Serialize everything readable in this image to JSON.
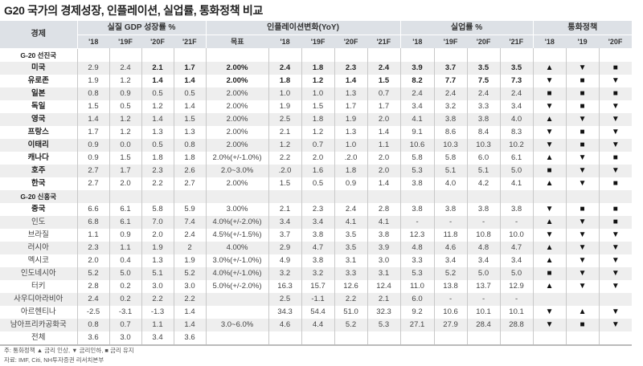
{
  "title": "G20 국가의 경제성장, 인플레이션, 실업률, 통화정책 비교",
  "header": {
    "economy": "경제",
    "gdp": "실질 GDP 성장률 %",
    "inflation": "인플레이션변화(YoY)",
    "unemployment": "실업률 %",
    "policy": "통화정책",
    "target": "목표",
    "years4": [
      "'18",
      "'19F",
      "'20F",
      "'21F"
    ],
    "policy_years": [
      "'18",
      "'19",
      "'20F"
    ]
  },
  "policy_symbols": {
    "up": "▲",
    "down": "▼",
    "hold": "■",
    "none": ""
  },
  "rows": [
    {
      "group": "G-20 선진국"
    },
    {
      "name": "미국",
      "bold": true,
      "gdp": [
        "2.9",
        "2.4",
        "2.1",
        "1.7"
      ],
      "gdp_bold": [
        false,
        false,
        true,
        true
      ],
      "target": "2.00%",
      "inflation": [
        "2.4",
        "1.8",
        "2.3",
        "2.4"
      ],
      "unemployment": [
        "3.9",
        "3.7",
        "3.5",
        "3.5"
      ],
      "policy": [
        "up",
        "down",
        "hold"
      ],
      "bold_rest": true
    },
    {
      "name": "유로존",
      "bold": true,
      "gdp": [
        "1.9",
        "1.2",
        "1.4",
        "1.4"
      ],
      "gdp_bold": [
        false,
        false,
        true,
        true
      ],
      "target": "2.00%",
      "inflation": [
        "1.8",
        "1.2",
        "1.4",
        "1.5"
      ],
      "unemployment": [
        "8.2",
        "7.7",
        "7.5",
        "7.3"
      ],
      "policy": [
        "down",
        "hold",
        "down"
      ],
      "bold_rest": true
    },
    {
      "name": "일본",
      "bold": true,
      "gdp": [
        "0.8",
        "0.9",
        "0.5",
        "0.5"
      ],
      "target": "2.00%",
      "inflation": [
        "1.0",
        "1.0",
        "1.3",
        "0.7"
      ],
      "unemployment": [
        "2.4",
        "2.4",
        "2.4",
        "2.4"
      ],
      "policy": [
        "hold",
        "hold",
        "hold"
      ]
    },
    {
      "name": "독일",
      "bold": true,
      "gdp": [
        "1.5",
        "0.5",
        "1.2",
        "1.4"
      ],
      "target": "2.00%",
      "inflation": [
        "1.9",
        "1.5",
        "1.7",
        "1.7"
      ],
      "unemployment": [
        "3.4",
        "3.2",
        "3.3",
        "3.4"
      ],
      "policy": [
        "down",
        "hold",
        "down"
      ]
    },
    {
      "name": "영국",
      "bold": true,
      "gdp": [
        "1.4",
        "1.2",
        "1.4",
        "1.5"
      ],
      "target": "2.00%",
      "inflation": [
        "2.5",
        "1.8",
        "1.9",
        "2.0"
      ],
      "unemployment": [
        "4.1",
        "3.8",
        "3.8",
        "4.0"
      ],
      "policy": [
        "up",
        "down",
        "down"
      ]
    },
    {
      "name": "프랑스",
      "bold": true,
      "gdp": [
        "1.7",
        "1.2",
        "1.3",
        "1.3"
      ],
      "target": "2.00%",
      "inflation": [
        "2.1",
        "1.2",
        "1.3",
        "1.4"
      ],
      "unemployment": [
        "9.1",
        "8.6",
        "8.4",
        "8.3"
      ],
      "policy": [
        "down",
        "hold",
        "down"
      ]
    },
    {
      "name": "이태리",
      "bold": true,
      "gdp": [
        "0.9",
        "0.0",
        "0.5",
        "0.8"
      ],
      "target": "2.00%",
      "inflation": [
        "1.2",
        "0.7",
        "1.0",
        "1.1"
      ],
      "unemployment": [
        "10.6",
        "10.3",
        "10.3",
        "10.2"
      ],
      "policy": [
        "down",
        "hold",
        "down"
      ]
    },
    {
      "name": "캐나다",
      "bold": true,
      "gdp": [
        "0.9",
        "1.5",
        "1.8",
        "1.8"
      ],
      "target": "2.0%(+/-1.0%)",
      "inflation": [
        "2.2",
        "2.0",
        ".2.0",
        "2.0"
      ],
      "unemployment": [
        "5.8",
        "5.8",
        "6.0",
        "6.1"
      ],
      "policy": [
        "up",
        "down",
        "hold"
      ]
    },
    {
      "name": "호주",
      "bold": true,
      "gdp": [
        "2.7",
        "1.7",
        "2.3",
        "2.6"
      ],
      "target": "2.0~3.0%",
      "inflation": [
        ".2.0",
        "1.6",
        "1.8",
        "2.0"
      ],
      "unemployment": [
        "5.3",
        "5.1",
        "5.1",
        "5.0"
      ],
      "policy": [
        "hold",
        "down",
        "down"
      ]
    },
    {
      "name": "한국",
      "bold": true,
      "gdp": [
        "2.7",
        "2.0",
        "2.2",
        "2.7"
      ],
      "target": "2.00%",
      "inflation": [
        "1.5",
        "0.5",
        "0.9",
        "1.4"
      ],
      "unemployment": [
        "3.8",
        "4.0",
        "4.2",
        "4.1"
      ],
      "policy": [
        "up",
        "down",
        "hold"
      ]
    },
    {
      "group": "G-20 신흥국"
    },
    {
      "name": "중국",
      "bold": true,
      "gdp": [
        "6.6",
        "6.1",
        "5.8",
        "5.9"
      ],
      "target": "3.00%",
      "inflation": [
        "2.1",
        "2.3",
        "2.4",
        "2.8"
      ],
      "unemployment": [
        "3.8",
        "3.8",
        "3.8",
        "3.8"
      ],
      "policy": [
        "down",
        "hold",
        "hold"
      ]
    },
    {
      "name": "인도",
      "gdp": [
        "6.8",
        "6.1",
        "7.0",
        "7.4"
      ],
      "target": "4.0%(+/-2.0%)",
      "inflation": [
        "3.4",
        "3.4",
        "4.1",
        "4.1"
      ],
      "unemployment": [
        "-",
        "-",
        "-",
        "-"
      ],
      "policy": [
        "up",
        "down",
        "hold"
      ]
    },
    {
      "name": "브라질",
      "gdp": [
        "1.1",
        "0.9",
        "2.0",
        "2.4"
      ],
      "target": "4.5%(+/-1.5%)",
      "inflation": [
        "3.7",
        "3.8",
        "3.5",
        "3.8"
      ],
      "unemployment": [
        "12.3",
        "11.8",
        "10.8",
        "10.0"
      ],
      "policy": [
        "down",
        "down",
        "down"
      ]
    },
    {
      "name": "러시아",
      "gdp": [
        "2.3",
        "1.1",
        "1.9",
        "2"
      ],
      "target": "4.00%",
      "inflation": [
        "2.9",
        "4.7",
        "3.5",
        "3.9"
      ],
      "unemployment": [
        "4.8",
        "4.6",
        "4.8",
        "4.7"
      ],
      "policy": [
        "up",
        "down",
        "down"
      ]
    },
    {
      "name": "멕시코",
      "gdp": [
        "2.0",
        "0.4",
        "1.3",
        "1.9"
      ],
      "target": "3.0%(+/-1.0%)",
      "inflation": [
        "4.9",
        "3.8",
        "3.1",
        "3.0"
      ],
      "unemployment": [
        "3.3",
        "3.4",
        "3.4",
        "3.4"
      ],
      "policy": [
        "up",
        "down",
        "down"
      ]
    },
    {
      "name": "인도네시아",
      "gdp": [
        "5.2",
        "5.0",
        "5.1",
        "5.2"
      ],
      "target": "4.0%(+/-1.0%)",
      "inflation": [
        "3.2",
        "3.2",
        "3.3",
        "3.1"
      ],
      "unemployment": [
        "5.3",
        "5.2",
        "5.0",
        "5.0"
      ],
      "policy": [
        "hold",
        "down",
        "down"
      ]
    },
    {
      "name": "터키",
      "gdp": [
        "2.8",
        "0.2",
        "3.0",
        "3.0"
      ],
      "target": "5.0%(+/-2.0%)",
      "inflation": [
        "16.3",
        "15.7",
        "12.6",
        "12.4"
      ],
      "unemployment": [
        "11.0",
        "13.8",
        "13.7",
        "12.9"
      ],
      "policy": [
        "up",
        "down",
        "down"
      ]
    },
    {
      "name": "사우디아라비아",
      "gdp": [
        "2.4",
        "0.2",
        "2.2",
        "2.2"
      ],
      "target": "",
      "inflation": [
        "2.5",
        "-1.1",
        "2.2",
        "2.1"
      ],
      "unemployment": [
        "6.0",
        "-",
        "-",
        "-"
      ],
      "policy": [
        "none",
        "none",
        "none"
      ]
    },
    {
      "name": "아르헨티나",
      "gdp": [
        "-2.5",
        "-3.1",
        "-1.3",
        "1.4"
      ],
      "target": "",
      "inflation": [
        "34.3",
        "54.4",
        "51.0",
        "32.3"
      ],
      "unemployment": [
        "9.2",
        "10.6",
        "10.1",
        "10.1"
      ],
      "policy": [
        "down",
        "up",
        "down"
      ]
    },
    {
      "name": "남아프리카공화국",
      "gdp": [
        "0.8",
        "0.7",
        "1.1",
        "1.4"
      ],
      "target": "3.0~6.0%",
      "inflation": [
        "4.6",
        "4.4",
        "5.2",
        "5.3"
      ],
      "unemployment": [
        "27.1",
        "27.9",
        "28.4",
        "28.8"
      ],
      "policy": [
        "down",
        "hold",
        "down"
      ]
    },
    {
      "name": "전체",
      "gdp": [
        "3.6",
        "3.0",
        "3.4",
        "3.6"
      ],
      "target": "",
      "inflation": [
        "",
        "",
        "",
        ""
      ],
      "unemployment": [
        "",
        "",
        "",
        ""
      ],
      "policy": [
        "none",
        "none",
        "none"
      ]
    }
  ],
  "footnote": "주: 통화정책 ▲ 금리 인상, ▼ 금리인하, ■ 금리 유지",
  "source": "자료: IMF, Citi, NH투자증권 리서치본부"
}
